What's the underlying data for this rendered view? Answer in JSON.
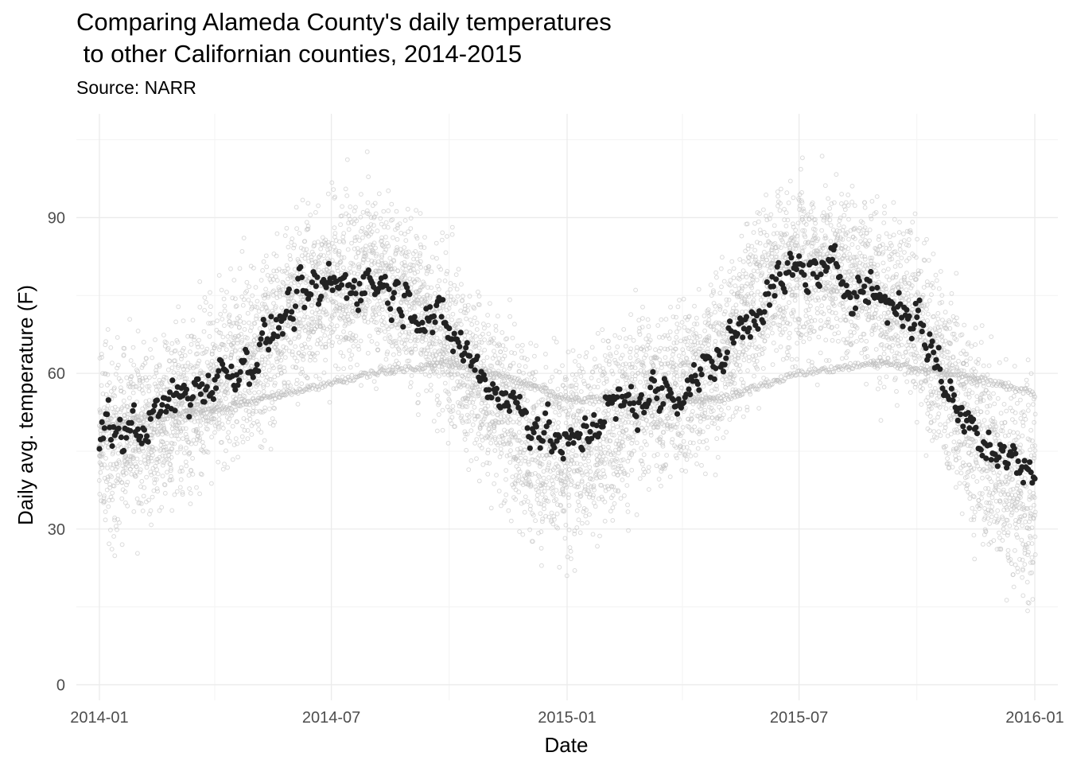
{
  "chart_data": {
    "type": "scatter",
    "title_lines": [
      "Comparing Alameda County's daily temperatures",
      " to other Californian counties, 2014-2015"
    ],
    "subtitle": "Source: NARR",
    "xlabel": "Date",
    "ylabel": "Daily avg. temperature (F)",
    "x_range": [
      "2013-12-14",
      "2016-01-19"
    ],
    "ylim": [
      -3,
      110
    ],
    "x_ticks": [
      {
        "date": "2014-01-01",
        "label": "2014-01"
      },
      {
        "date": "2014-07-01",
        "label": "2014-07"
      },
      {
        "date": "2015-01-01",
        "label": "2015-01"
      },
      {
        "date": "2015-07-01",
        "label": "2015-07"
      },
      {
        "date": "2016-01-01",
        "label": "2016-01"
      }
    ],
    "x_minor_dates": [
      "2014-04-01",
      "2014-10-01",
      "2015-04-01",
      "2015-10-01"
    ],
    "y_ticks": [
      0,
      30,
      60,
      90
    ],
    "y_minor": [
      15,
      45,
      75,
      105
    ],
    "grid": true,
    "legend": "none",
    "series": [
      {
        "role": "other-counties",
        "color": "#bebebe",
        "marker": "hollow-circle",
        "points_note": "dense cloud of many daily points",
        "band": [
          {
            "date": "2014-01-01",
            "center": 47,
            "spread": 11
          },
          {
            "date": "2014-02-01",
            "center": 48,
            "spread": 11
          },
          {
            "date": "2014-03-01",
            "center": 52,
            "spread": 11
          },
          {
            "date": "2014-04-01",
            "center": 58,
            "spread": 11
          },
          {
            "date": "2014-05-01",
            "center": 63,
            "spread": 11
          },
          {
            "date": "2014-06-01",
            "center": 72,
            "spread": 11
          },
          {
            "date": "2014-07-01",
            "center": 77,
            "spread": 11
          },
          {
            "date": "2014-08-01",
            "center": 78,
            "spread": 11
          },
          {
            "date": "2014-09-01",
            "center": 74,
            "spread": 11
          },
          {
            "date": "2014-10-01",
            "center": 66,
            "spread": 11
          },
          {
            "date": "2014-11-01",
            "center": 56,
            "spread": 11
          },
          {
            "date": "2014-12-01",
            "center": 47,
            "spread": 12
          },
          {
            "date": "2015-01-01",
            "center": 44,
            "spread": 13
          },
          {
            "date": "2015-02-01",
            "center": 50,
            "spread": 11
          },
          {
            "date": "2015-03-01",
            "center": 55,
            "spread": 11
          },
          {
            "date": "2015-04-01",
            "center": 57,
            "spread": 11
          },
          {
            "date": "2015-05-01",
            "center": 63,
            "spread": 11
          },
          {
            "date": "2015-06-01",
            "center": 75,
            "spread": 11
          },
          {
            "date": "2015-07-01",
            "center": 80,
            "spread": 11
          },
          {
            "date": "2015-08-01",
            "center": 80,
            "spread": 11
          },
          {
            "date": "2015-09-01",
            "center": 76,
            "spread": 11
          },
          {
            "date": "2015-10-01",
            "center": 70,
            "spread": 11
          },
          {
            "date": "2015-11-01",
            "center": 55,
            "spread": 12
          },
          {
            "date": "2015-12-01",
            "center": 42,
            "spread": 13
          },
          {
            "date": "2016-01-01",
            "center": 35,
            "spread": 13
          }
        ]
      },
      {
        "role": "alameda",
        "color": "#222222",
        "marker": "filled-circle",
        "points_note": "one point per day",
        "trend": [
          {
            "date": "2014-01-01",
            "value": 49
          },
          {
            "date": "2014-02-01",
            "value": 49
          },
          {
            "date": "2014-03-01",
            "value": 55
          },
          {
            "date": "2014-04-01",
            "value": 59
          },
          {
            "date": "2014-05-01",
            "value": 63
          },
          {
            "date": "2014-06-01",
            "value": 73
          },
          {
            "date": "2014-07-01",
            "value": 77
          },
          {
            "date": "2014-08-01",
            "value": 78
          },
          {
            "date": "2014-09-01",
            "value": 74
          },
          {
            "date": "2014-10-01",
            "value": 68
          },
          {
            "date": "2014-11-01",
            "value": 58
          },
          {
            "date": "2014-12-01",
            "value": 52
          },
          {
            "date": "2015-01-01",
            "value": 45
          },
          {
            "date": "2015-02-01",
            "value": 53
          },
          {
            "date": "2015-03-01",
            "value": 55
          },
          {
            "date": "2015-04-01",
            "value": 57
          },
          {
            "date": "2015-05-01",
            "value": 63
          },
          {
            "date": "2015-06-01",
            "value": 74
          },
          {
            "date": "2015-07-01",
            "value": 80
          },
          {
            "date": "2015-08-01",
            "value": 79
          },
          {
            "date": "2015-09-01",
            "value": 75
          },
          {
            "date": "2015-10-01",
            "value": 71
          },
          {
            "date": "2015-11-01",
            "value": 53
          },
          {
            "date": "2015-12-01",
            "value": 46
          },
          {
            "date": "2016-01-01",
            "value": 40
          }
        ]
      },
      {
        "role": "coastal-county",
        "color": "#bebebe",
        "marker": "hollow-circle",
        "curve": [
          {
            "date": "2014-01-01",
            "value": 50
          },
          {
            "date": "2014-04-01",
            "value": 53
          },
          {
            "date": "2014-07-01",
            "value": 58
          },
          {
            "date": "2014-08-01",
            "value": 60
          },
          {
            "date": "2014-10-01",
            "value": 62
          },
          {
            "date": "2014-12-01",
            "value": 58
          },
          {
            "date": "2015-01-01",
            "value": 55
          },
          {
            "date": "2015-03-01",
            "value": 55
          },
          {
            "date": "2015-05-01",
            "value": 55
          },
          {
            "date": "2015-07-01",
            "value": 60
          },
          {
            "date": "2015-09-01",
            "value": 62
          },
          {
            "date": "2015-11-01",
            "value": 60
          },
          {
            "date": "2016-01-01",
            "value": 56
          }
        ]
      }
    ]
  }
}
